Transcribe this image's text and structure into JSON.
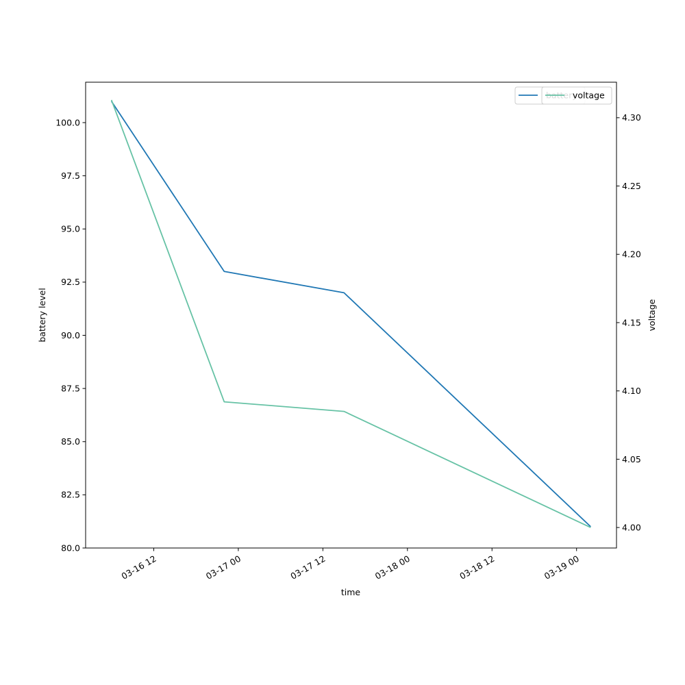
{
  "chart_data": {
    "type": "line",
    "xlabel": "time",
    "ylabel_left": "battery level",
    "ylabel_right": "voltage",
    "x_ticks": [
      "03-16 12",
      "03-17 00",
      "03-17 12",
      "03-18 00",
      "03-18 12",
      "03-19 00"
    ],
    "xlim": [
      "2024-03-16T02:20",
      "2024-03-19T05:40"
    ],
    "ylim_left": [
      80.0,
      101.9
    ],
    "ylim_right": [
      3.985,
      4.326
    ],
    "y_ticks_left": [
      "80.0",
      "82.5",
      "85.0",
      "87.5",
      "90.0",
      "92.5",
      "95.0",
      "97.5",
      "100.0"
    ],
    "y_ticks_right": [
      "4.00",
      "4.05",
      "4.10",
      "4.15",
      "4.20",
      "4.25",
      "4.30"
    ],
    "x": [
      "2024-03-16T06:00",
      "2024-03-16T22:00",
      "2024-03-17T15:00",
      "2024-03-19T02:00"
    ],
    "series": [
      {
        "name": "battery",
        "axis": "left",
        "color": "#1f77b4",
        "values": [
          101,
          93,
          92,
          81
        ]
      },
      {
        "name": "voltage",
        "axis": "right",
        "color": "#66c2a5",
        "values": [
          4.313,
          4.092,
          4.085,
          4.0
        ]
      }
    ],
    "legend": {
      "placement": "top-right"
    },
    "grid": false
  }
}
